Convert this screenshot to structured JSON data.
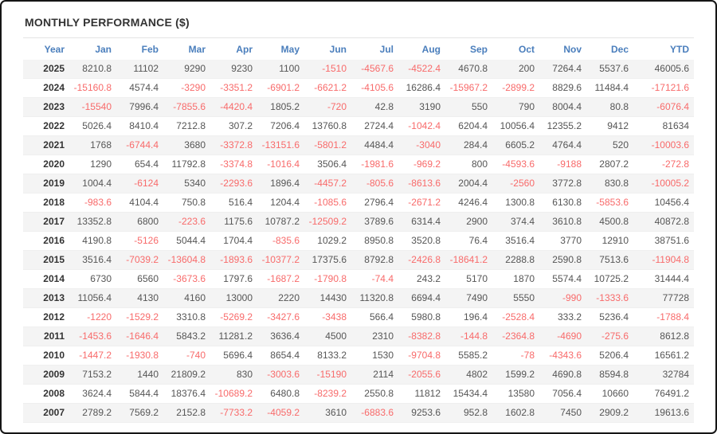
{
  "title": "MONTHLY PERFORMANCE ($)",
  "colors": {
    "header_text": "#4a7ebc",
    "title_text": "#333333",
    "positive_value": "#555555",
    "negative_value": "#f86a6a",
    "year_text": "#333333",
    "row_stripe": "#f4f4f4"
  },
  "chart_data": {
    "type": "table",
    "title": "MONTHLY PERFORMANCE ($)",
    "columns": [
      "Year",
      "Jan",
      "Feb",
      "Mar",
      "Apr",
      "May",
      "Jun",
      "Jul",
      "Aug",
      "Sep",
      "Oct",
      "Nov",
      "Dec",
      "YTD"
    ],
    "rows": [
      {
        "year": "2025",
        "values": [
          8210.8,
          11102,
          9290,
          9230,
          1100,
          -1510,
          -4567.6,
          -4522.4,
          4670.8,
          200,
          7264.4,
          5537.6,
          46005.6
        ]
      },
      {
        "year": "2024",
        "values": [
          -15160.8,
          4574.4,
          -3290,
          -3351.2,
          -6901.2,
          -6621.2,
          -4105.6,
          16286.4,
          -15967.2,
          -2899.2,
          8829.6,
          11484.4,
          -17121.6
        ]
      },
      {
        "year": "2023",
        "values": [
          -15540,
          7996.4,
          -7855.6,
          -4420.4,
          1805.2,
          -720,
          42.8,
          3190,
          550,
          790,
          8004.4,
          80.8,
          -6076.4
        ]
      },
      {
        "year": "2022",
        "values": [
          5026.4,
          8410.4,
          7212.8,
          307.2,
          7206.4,
          13760.8,
          2724.4,
          -1042.4,
          6204.4,
          10056.4,
          12355.2,
          9412,
          81634
        ]
      },
      {
        "year": "2021",
        "values": [
          1768,
          -6744.4,
          3680,
          -3372.8,
          -13151.6,
          -5801.2,
          4484.4,
          -3040,
          284.4,
          6605.2,
          4764.4,
          520,
          -10003.6
        ]
      },
      {
        "year": "2020",
        "values": [
          1290,
          654.4,
          11792.8,
          -3374.8,
          -1016.4,
          3506.4,
          -1981.6,
          -969.2,
          800,
          -4593.6,
          -9188,
          2807.2,
          -272.8
        ]
      },
      {
        "year": "2019",
        "values": [
          1004.4,
          -6124,
          5340,
          -2293.6,
          1896.4,
          -4457.2,
          -805.6,
          -8613.6,
          2004.4,
          -2560,
          3772.8,
          830.8,
          -10005.2
        ]
      },
      {
        "year": "2018",
        "values": [
          -983.6,
          4104.4,
          750.8,
          516.4,
          1204.4,
          -1085.6,
          2796.4,
          -2671.2,
          4246.4,
          1300.8,
          6130.8,
          -5853.6,
          10456.4
        ]
      },
      {
        "year": "2017",
        "values": [
          13352.8,
          6800,
          -223.6,
          1175.6,
          10787.2,
          -12509.2,
          3789.6,
          6314.4,
          2900,
          374.4,
          3610.8,
          4500.8,
          40872.8
        ]
      },
      {
        "year": "2016",
        "values": [
          4190.8,
          -5126,
          5044.4,
          1704.4,
          -835.6,
          1029.2,
          8950.8,
          3520.8,
          76.4,
          3516.4,
          3770,
          12910,
          38751.6
        ]
      },
      {
        "year": "2015",
        "values": [
          3516.4,
          -7039.2,
          -13604.8,
          -1893.6,
          -10377.2,
          17375.6,
          8792.8,
          -2426.8,
          -18641.2,
          2288.8,
          2590.8,
          7513.6,
          -11904.8
        ]
      },
      {
        "year": "2014",
        "values": [
          6730,
          6560,
          -3673.6,
          1797.6,
          -1687.2,
          -1790.8,
          -74.4,
          243.2,
          5170,
          1870,
          5574.4,
          10725.2,
          31444.4
        ]
      },
      {
        "year": "2013",
        "values": [
          11056.4,
          4130,
          4160,
          13000,
          2220,
          14430,
          11320.8,
          6694.4,
          7490,
          5550,
          -990,
          -1333.6,
          77728
        ]
      },
      {
        "year": "2012",
        "values": [
          -1220,
          -1529.2,
          3310.8,
          -5269.2,
          -3427.6,
          -3438,
          566.4,
          5980.8,
          196.4,
          -2528.4,
          333.2,
          5236.4,
          -1788.4
        ]
      },
      {
        "year": "2011",
        "values": [
          -1453.6,
          -1646.4,
          5843.2,
          11281.2,
          3636.4,
          4500,
          2310,
          -8382.8,
          -144.8,
          -2364.8,
          -4690,
          -275.6,
          8612.8
        ]
      },
      {
        "year": "2010",
        "values": [
          -1447.2,
          -1930.8,
          -740,
          5696.4,
          8654.4,
          8133.2,
          1530,
          -9704.8,
          5585.2,
          -78,
          -4343.6,
          5206.4,
          16561.2
        ]
      },
      {
        "year": "2009",
        "values": [
          7153.2,
          1440,
          21809.2,
          830,
          -3003.6,
          -15190,
          2114,
          -2055.6,
          4802,
          1599.2,
          4690.8,
          8594.8,
          32784
        ]
      },
      {
        "year": "2008",
        "values": [
          3624.4,
          5844.4,
          18376.4,
          -10689.2,
          6480.8,
          -8239.2,
          2550.8,
          11812,
          15434.4,
          13580,
          7056.4,
          10660,
          76491.2
        ]
      },
      {
        "year": "2007",
        "values": [
          2789.2,
          7569.2,
          2152.8,
          -7733.2,
          -4059.2,
          3610,
          -6883.6,
          9253.6,
          952.8,
          1602.8,
          7450,
          2909.2,
          19613.6
        ]
      }
    ]
  }
}
